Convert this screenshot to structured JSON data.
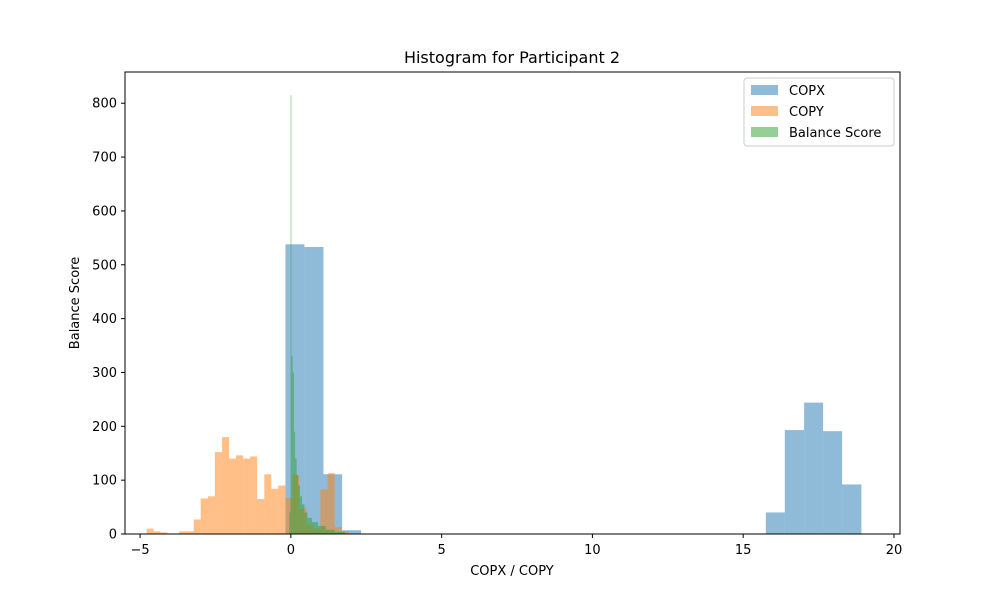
{
  "chart_data": {
    "type": "bar",
    "title": "Histogram for Participant 2",
    "xlabel": "COPX / COPY",
    "ylabel": "Balance Score",
    "xlim": [
      -5.5,
      20.2
    ],
    "ylim": [
      0,
      858
    ],
    "xticks": [
      -5,
      0,
      5,
      10,
      15,
      20
    ],
    "yticks": [
      0,
      100,
      200,
      300,
      400,
      500,
      600,
      700,
      800
    ],
    "grid": false,
    "legend_position": "top-right",
    "series": [
      {
        "name": "COPX",
        "color": "#1f77b4",
        "opacity": 0.5,
        "bins": [
          {
            "x0": -0.18,
            "x1": 0.45,
            "count": 538
          },
          {
            "x0": 0.45,
            "x1": 1.08,
            "count": 533
          },
          {
            "x0": 1.08,
            "x1": 1.7,
            "count": 111
          },
          {
            "x0": 1.7,
            "x1": 2.33,
            "count": 7
          },
          {
            "x0": 15.75,
            "x1": 16.38,
            "count": 40
          },
          {
            "x0": 16.38,
            "x1": 17.02,
            "count": 193
          },
          {
            "x0": 17.02,
            "x1": 17.65,
            "count": 244
          },
          {
            "x0": 17.65,
            "x1": 18.28,
            "count": 191
          },
          {
            "x0": 18.28,
            "x1": 18.92,
            "count": 92
          }
        ]
      },
      {
        "name": "COPY",
        "color": "#ff7f0e",
        "opacity": 0.5,
        "bins": [
          {
            "x0": -4.78,
            "x1": -4.55,
            "count": 10
          },
          {
            "x0": -4.55,
            "x1": -4.32,
            "count": 5
          },
          {
            "x0": -4.32,
            "x1": -4.1,
            "count": 3
          },
          {
            "x0": -3.7,
            "x1": -3.46,
            "count": 5
          },
          {
            "x0": -3.46,
            "x1": -3.22,
            "count": 5
          },
          {
            "x0": -3.22,
            "x1": -2.99,
            "count": 27
          },
          {
            "x0": -2.99,
            "x1": -2.75,
            "count": 66
          },
          {
            "x0": -2.75,
            "x1": -2.52,
            "count": 70
          },
          {
            "x0": -2.52,
            "x1": -2.28,
            "count": 152
          },
          {
            "x0": -2.28,
            "x1": -2.05,
            "count": 180
          },
          {
            "x0": -2.05,
            "x1": -1.82,
            "count": 140
          },
          {
            "x0": -1.82,
            "x1": -1.58,
            "count": 146
          },
          {
            "x0": -1.58,
            "x1": -1.35,
            "count": 140
          },
          {
            "x0": -1.35,
            "x1": -1.12,
            "count": 144
          },
          {
            "x0": -1.12,
            "x1": -0.88,
            "count": 65
          },
          {
            "x0": -0.88,
            "x1": -0.65,
            "count": 111
          },
          {
            "x0": -0.65,
            "x1": -0.42,
            "count": 84
          },
          {
            "x0": -0.42,
            "x1": -0.18,
            "count": 90
          },
          {
            "x0": -0.18,
            "x1": 0.05,
            "count": 67
          },
          {
            "x0": 0.05,
            "x1": 0.28,
            "count": 109
          },
          {
            "x0": 0.28,
            "x1": 0.52,
            "count": 47
          },
          {
            "x0": 0.52,
            "x1": 0.75,
            "count": 17
          },
          {
            "x0": 0.75,
            "x1": 0.98,
            "count": 10
          },
          {
            "x0": 0.98,
            "x1": 1.22,
            "count": 83
          },
          {
            "x0": 1.22,
            "x1": 1.45,
            "count": 113
          },
          {
            "x0": 1.45,
            "x1": 1.68,
            "count": 13
          },
          {
            "x0": 1.68,
            "x1": 1.92,
            "count": 5
          }
        ]
      },
      {
        "name": "Balance Score",
        "color": "#2ca02c",
        "opacity": 0.5,
        "bins": [
          {
            "x0": -0.05,
            "x1": -0.01,
            "count": 40
          },
          {
            "x0": -0.01,
            "x1": 0.02,
            "count": 815
          },
          {
            "x0": 0.02,
            "x1": 0.06,
            "count": 330
          },
          {
            "x0": 0.06,
            "x1": 0.1,
            "count": 300
          },
          {
            "x0": 0.1,
            "x1": 0.14,
            "count": 190
          },
          {
            "x0": 0.14,
            "x1": 0.19,
            "count": 140
          },
          {
            "x0": 0.19,
            "x1": 0.24,
            "count": 110
          },
          {
            "x0": 0.24,
            "x1": 0.3,
            "count": 90
          },
          {
            "x0": 0.3,
            "x1": 0.37,
            "count": 70
          },
          {
            "x0": 0.37,
            "x1": 0.45,
            "count": 55
          },
          {
            "x0": 0.45,
            "x1": 0.55,
            "count": 40
          },
          {
            "x0": 0.55,
            "x1": 0.7,
            "count": 30
          },
          {
            "x0": 0.7,
            "x1": 0.9,
            "count": 22
          },
          {
            "x0": 0.9,
            "x1": 1.15,
            "count": 15
          },
          {
            "x0": 1.15,
            "x1": 1.45,
            "count": 8
          },
          {
            "x0": 1.45,
            "x1": 1.8,
            "count": 4
          }
        ]
      }
    ]
  }
}
